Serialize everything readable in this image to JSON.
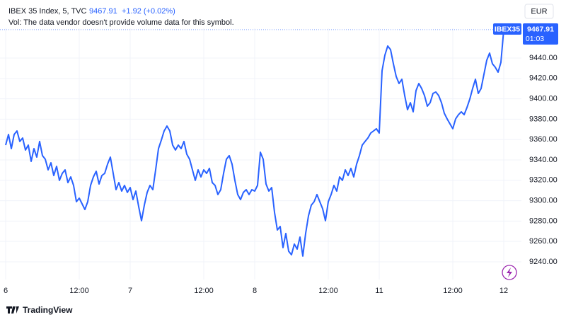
{
  "chart_data": {
    "type": "line",
    "title": "IBEX 35 Index, 5, TVC",
    "change": "+1.92 (+0.02%)",
    "volume_note": "Vol: The data vendor doesn't provide volume data for this symbol.",
    "currency": "EUR",
    "symbol_tag": "IBEX35",
    "countdown": "01:03",
    "brand": "TradingView",
    "color": "#2962ff",
    "grid": true,
    "x": [
      0,
      2,
      4,
      6,
      8,
      10,
      12,
      14,
      16,
      18,
      20,
      22,
      24,
      26,
      28,
      30,
      32,
      34,
      36,
      38,
      40,
      42,
      44,
      46,
      48,
      50,
      52,
      54,
      56,
      58,
      60,
      62,
      64,
      66,
      68,
      70,
      72,
      74,
      76,
      78,
      80,
      82,
      84,
      86,
      88,
      90,
      92,
      94,
      96,
      98,
      100,
      102,
      104,
      106,
      108,
      110,
      112,
      114,
      116,
      118,
      120,
      122,
      124,
      126,
      128,
      130,
      132,
      134,
      136,
      138,
      140,
      142,
      144,
      146,
      148,
      150,
      152,
      154,
      156,
      158,
      160,
      162,
      164,
      166,
      168,
      170,
      172,
      174,
      176,
      178,
      180,
      182,
      184,
      186,
      188,
      190,
      192,
      194,
      196,
      198,
      200,
      202,
      204,
      206,
      208,
      210,
      212,
      214,
      216,
      218,
      220,
      222,
      224,
      226,
      228,
      230,
      232,
      234,
      236,
      238,
      240,
      242,
      244,
      246,
      248,
      250,
      252,
      254,
      256,
      258,
      260,
      262,
      264,
      266,
      268,
      270,
      272,
      274,
      276,
      278,
      280,
      282,
      284,
      286,
      288,
      290,
      292,
      294,
      296,
      298,
      300,
      302,
      304,
      306,
      308,
      310,
      312,
      314,
      316,
      318,
      320,
      322,
      324,
      326,
      328,
      330,
      332,
      334,
      336,
      338,
      340,
      342,
      344,
      346,
      348,
      350,
      352
    ],
    "values": [
      9354.6,
      9365,
      9351.1,
      9365,
      9368.5,
      9358.1,
      9361.5,
      9349.7,
      9354.6,
      9338.6,
      9351.1,
      9342.8,
      9358.1,
      9344.2,
      9340.7,
      9330.3,
      9337.2,
      9324.7,
      9333.7,
      9319.9,
      9326.8,
      9330.3,
      9317.8,
      9323.3,
      9315,
      9299,
      9302.5,
      9296.9,
      9291.4,
      9299,
      9315,
      9323.3,
      9328.9,
      9316.4,
      9324.7,
      9326.8,
      9335.8,
      9342.8,
      9326.8,
      9310.8,
      9317.8,
      9309.4,
      9315,
      9308.1,
      9312.9,
      9301.1,
      9309.4,
      9294.2,
      9280.3,
      9295.6,
      9308.1,
      9315,
      9310.8,
      9330.3,
      9351.1,
      9359.4,
      9368.5,
      9373.3,
      9368.5,
      9354.6,
      9349.7,
      9354.6,
      9351.1,
      9358.1,
      9345.6,
      9340.7,
      9330.3,
      9319.9,
      9330.3,
      9323.3,
      9330.3,
      9326.8,
      9331.7,
      9317.8,
      9315,
      9306,
      9310.8,
      9326.8,
      9340.7,
      9344.2,
      9335.8,
      9319.9,
      9306,
      9301.1,
      9308.1,
      9310.8,
      9306,
      9310.8,
      9309.4,
      9315,
      9347.6,
      9340.7,
      9316.4,
      9309.4,
      9312.9,
      9288.6,
      9271.2,
      9274.7,
      9253.9,
      9267.8,
      9250.4,
      9246.9,
      9257.4,
      9252.5,
      9264.3,
      9245.6,
      9267.8,
      9285.1,
      9295.6,
      9299,
      9306,
      9299,
      9292.1,
      9280.3,
      9299,
      9306,
      9315,
      9309.4,
      9323.3,
      9319.9,
      9330.3,
      9324.7,
      9331.7,
      9323.3,
      9335.8,
      9344.2,
      9354.6,
      9358.1,
      9361.5,
      9366.4,
      9368.5,
      9370.6,
      9366.4,
      9427.5,
      9442.8,
      9451.8,
      9448.3,
      9434.4,
      9421.9,
      9415,
      9419.2,
      9403.2,
      9389.3,
      9396.2,
      9387.2,
      9408.1,
      9415,
      9410.1,
      9403.2,
      9392.8,
      9396.2,
      9405.3,
      9406.7,
      9403.2,
      9396.2,
      9385.8,
      9380.3,
      9375.4,
      9370.6,
      9380.3,
      9384.4,
      9387.2,
      9384.4,
      9391.4,
      9399.7,
      9410.1,
      9419.2,
      9405.3,
      9410.1,
      9424,
      9437.9,
      9444.9,
      9434.4,
      9431,
      9426.1,
      9435.8,
      9467.91
    ],
    "xlim": [
      -4,
      364.5
    ],
    "xticks": [
      {
        "value": 0,
        "label": "6"
      },
      {
        "value": 52,
        "label": "12:00"
      },
      {
        "value": 88,
        "label": "7"
      },
      {
        "value": 140,
        "label": "12:00"
      },
      {
        "value": 176,
        "label": "8"
      },
      {
        "value": 228,
        "label": "12:00"
      },
      {
        "value": 264,
        "label": "11"
      },
      {
        "value": 316,
        "label": "12:00"
      },
      {
        "value": 352,
        "label": "12"
      }
    ],
    "ylim": [
      9222.6,
      9469.2
    ],
    "yticks": [
      {
        "value": 9240,
        "label": "9240.00"
      },
      {
        "value": 9260,
        "label": "9260.00"
      },
      {
        "value": 9280,
        "label": "9280.00"
      },
      {
        "value": 9300,
        "label": "9300.00"
      },
      {
        "value": 9320,
        "label": "9320.00"
      },
      {
        "value": 9340,
        "label": "9340.00"
      },
      {
        "value": 9360,
        "label": "9360.00"
      },
      {
        "value": 9380,
        "label": "9380.00"
      },
      {
        "value": 9400,
        "label": "9400.00"
      },
      {
        "value": 9420,
        "label": "9420.00"
      },
      {
        "value": 9440,
        "label": "9440.00"
      }
    ]
  }
}
